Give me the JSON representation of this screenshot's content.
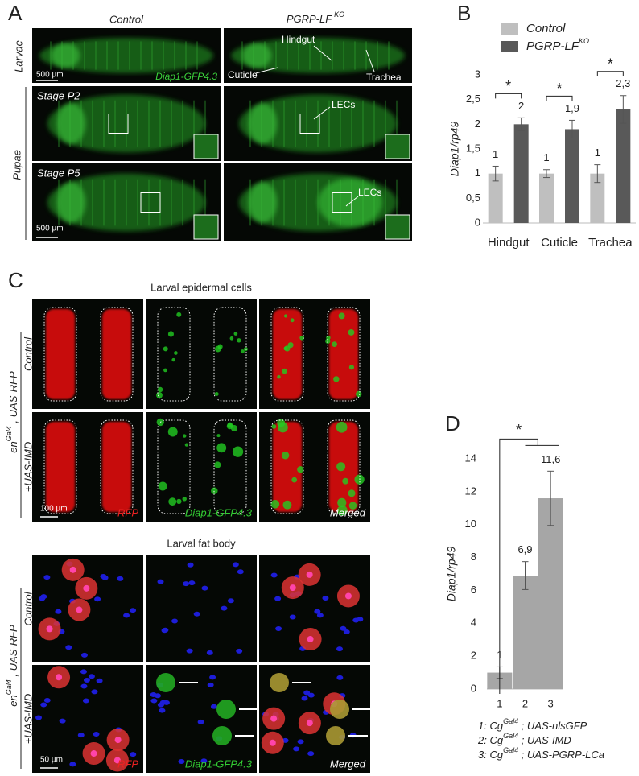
{
  "panel_labels": [
    "A",
    "B",
    "C",
    "D"
  ],
  "panel_a": {
    "col_control": "Control",
    "col_ko": "PGRP-LF",
    "col_ko_superscript": "KO",
    "row_larvae": "Larvae",
    "row_pupae": "Pupae",
    "stage_p2": "Stage P2",
    "stage_p5": "Stage P5",
    "scale_bars": [
      "500 µm",
      "500 µm"
    ],
    "reporter": "Diap1-GFP4.3",
    "annotations": [
      "Hindgut",
      "Cuticle",
      "Trachea",
      "LECs",
      "LECs"
    ]
  },
  "panel_c": {
    "sections": [
      {
        "title": "Larval epidermal cells",
        "genotype_prefix": "en",
        "genotype_superscript": "Gal4",
        "genotype_suffix": " , UAS-RFP",
        "rows": [
          "Control",
          "+UAS-IMD"
        ],
        "channels": [
          "RFP",
          "Diap1-GFP4.3",
          "Merged"
        ],
        "scale_bar": "100 µm"
      },
      {
        "title": "Larval fat body",
        "genotype_prefix": "en",
        "genotype_superscript": "Gal4",
        "genotype_suffix": " , UAS-RFP",
        "rows": [
          "Control",
          "+UAS-IMD"
        ],
        "channels": [
          "RFP",
          "Diap1-GFP4.3",
          "Merged"
        ],
        "scale_bar": "50 µm"
      }
    ]
  },
  "chart_data": [
    {
      "type": "bar",
      "ylabel": "Diap1/rp49",
      "categories": [
        "Hindgut",
        "Cuticle",
        "Trachea"
      ],
      "series": [
        {
          "name": "Control",
          "color": "#bfbfbf",
          "values": [
            1,
            1,
            1
          ],
          "errors": [
            0.15,
            0.08,
            0.18
          ],
          "value_labels": [
            "1",
            "1",
            "1"
          ]
        },
        {
          "name": "PGRP-LF",
          "name_superscript": "KO",
          "color": "#595959",
          "values": [
            2,
            1.9,
            2.3
          ],
          "errors": [
            0.13,
            0.18,
            0.28
          ],
          "value_labels": [
            "2",
            "1,9",
            "2,3"
          ]
        }
      ],
      "ylim": [
        0,
        3
      ],
      "yticks": [
        0,
        {
          "value": 0.5,
          "label": "0,5"
        },
        1,
        {
          "value": 1.5,
          "label": "1,5"
        },
        2,
        {
          "value": 2.5,
          "label": "2,5"
        },
        3
      ],
      "annotations": [
        "*",
        "*",
        "*"
      ],
      "grid": false
    },
    {
      "type": "bar",
      "ylabel": "Diap1/rp49",
      "categories": [
        "1",
        "2",
        "3"
      ],
      "values": [
        1,
        6.9,
        11.6
      ],
      "errors": [
        0.35,
        0.85,
        1.65
      ],
      "value_labels": [
        "1",
        "6,9",
        "11,6"
      ],
      "color": "#a6a6a6",
      "ylim": [
        0,
        14
      ],
      "yticks": [
        0,
        2,
        4,
        6,
        8,
        10,
        12,
        14
      ],
      "annotations": [
        "*"
      ],
      "grid": false,
      "legend": [
        {
          "prefix": "1: Cg",
          "superscript": "Gal4",
          "suffix": " ; UAS-nlsGFP"
        },
        {
          "prefix": "2: Cg",
          "superscript": "Gal4",
          "suffix": " ; UAS-IMD"
        },
        {
          "prefix": "3: Cg",
          "superscript": "Gal4",
          "suffix": " ; UAS-PGRP-LCa"
        }
      ]
    }
  ]
}
